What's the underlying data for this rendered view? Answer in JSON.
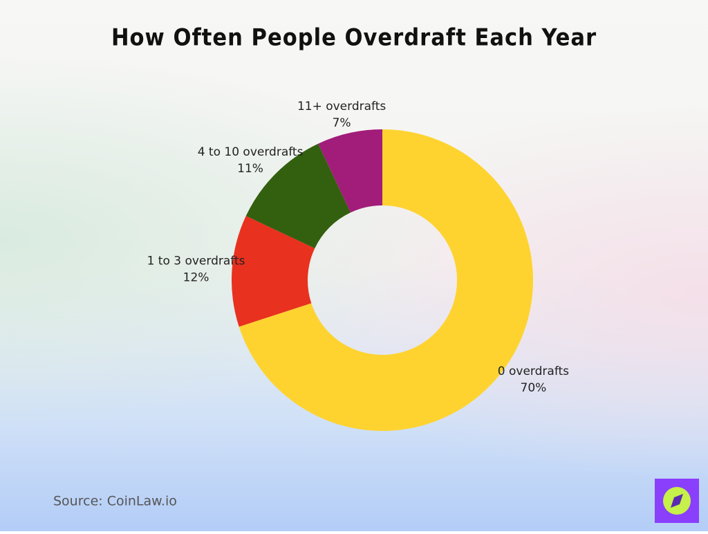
{
  "chart_data": {
    "type": "pie",
    "title": "How Often People Overdraft Each Year",
    "categories": [
      "0 overdrafts",
      "1 to 3 overdrafts",
      "4 to 10 overdrafts",
      "11+ overdrafts"
    ],
    "values": [
      70,
      12,
      11,
      7
    ],
    "value_labels": [
      "70%",
      "12%",
      "11%",
      "7%"
    ],
    "colors": [
      "#fed330",
      "#e8311f",
      "#33600f",
      "#a21c7a"
    ],
    "donut": true,
    "source": "Source: CoinLaw.io"
  }
}
